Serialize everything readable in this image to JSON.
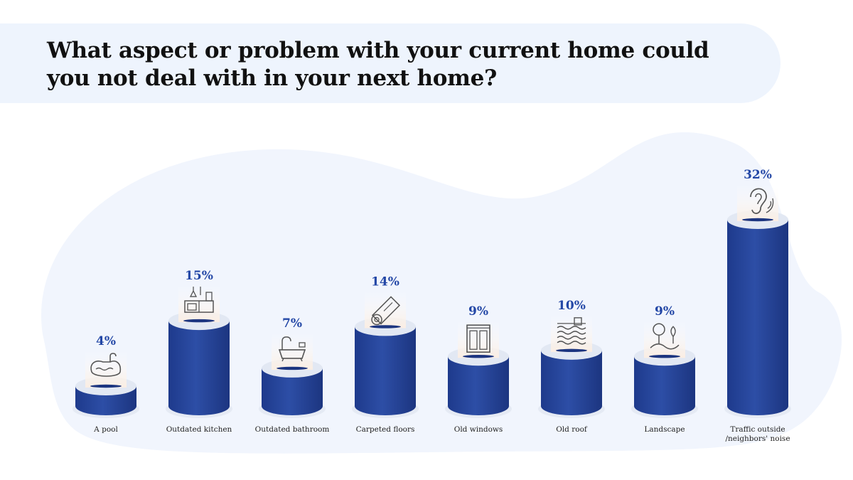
{
  "title": "What aspect or problem with your current home could you not deal with in your next home?",
  "colors": {
    "bar": "#2b4aa0",
    "bar_dark": "#1f3a8a",
    "bar_top": "#e3e9f3",
    "label": "#2347a6",
    "background_shape": "#f0f5fd"
  },
  "chart_data": {
    "type": "bar",
    "title": "What aspect or problem with your current home could you not deal with in your next home?",
    "xlabel": "",
    "ylabel": "",
    "ylim": [
      0,
      32
    ],
    "grid": false,
    "categories": [
      "A pool",
      "Outdated kitchen",
      "Outdated bathroom",
      "Carpeted floors",
      "Old windows",
      "Old roof",
      "Landscape",
      "Traffic outside /neighbors' noise"
    ],
    "values": [
      4,
      15,
      7,
      14,
      9,
      10,
      9,
      32
    ],
    "value_labels": [
      "4%",
      "15%",
      "7%",
      "14%",
      "9%",
      "10%",
      "9%",
      "32%"
    ],
    "category_lines": [
      [
        "A pool"
      ],
      [
        "Outdated kitchen"
      ],
      [
        "Outdated bathroom"
      ],
      [
        "Carpeted floors"
      ],
      [
        "Old windows"
      ],
      [
        "Old roof"
      ],
      [
        "Landscape"
      ],
      [
        "Traffic outside",
        "/neighbors' noise"
      ]
    ],
    "icons": [
      "pool-icon",
      "kitchen-icon",
      "bathtub-icon",
      "carpet-roll-icon",
      "window-icon",
      "roof-icon",
      "landscape-icon",
      "ear-icon"
    ]
  }
}
